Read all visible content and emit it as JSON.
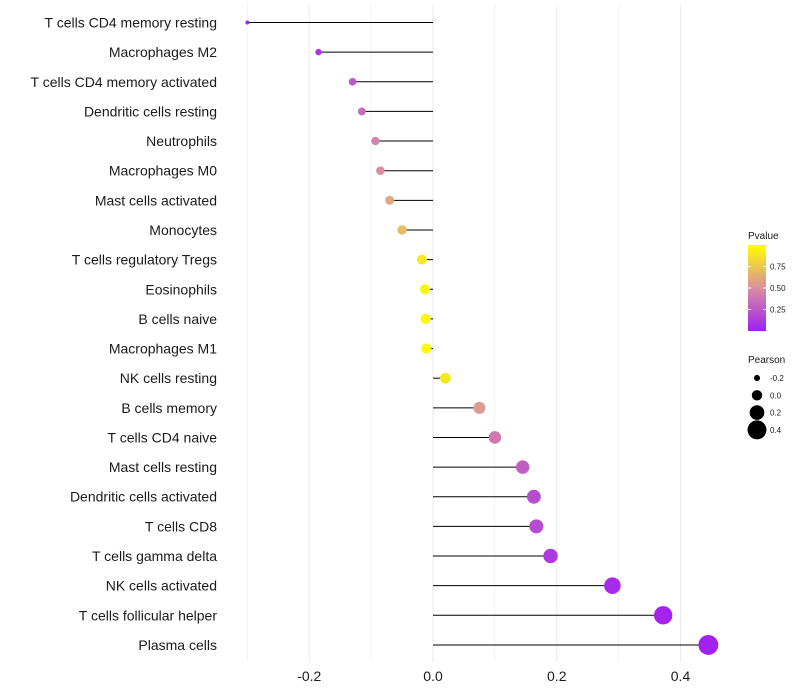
{
  "chart_data": {
    "type": "lollipop",
    "title": "",
    "xlabel": "",
    "ylabel": "",
    "xlim": [
      -0.3,
      0.45
    ],
    "x_ticks": [
      -0.2,
      0.0,
      0.2,
      0.4
    ],
    "x_tick_labels": [
      "-0.2",
      "0.0",
      "0.2",
      "0.4"
    ],
    "grid": true,
    "categories": [
      "T cells CD4 memory resting",
      "Macrophages M2",
      "T cells CD4 memory activated",
      "Dendritic cells resting",
      "Neutrophils",
      "Macrophages M0",
      "Mast cells activated",
      "Monocytes",
      "T cells regulatory  Tregs",
      "Eosinophils",
      "B cells naive",
      "Macrophages M1",
      "NK cells resting",
      "B cells memory",
      "T cells CD4 naive",
      "Mast cells resting",
      "Dendritic cells activated",
      "T cells CD8",
      "T cells gamma delta",
      "NK cells activated",
      "T cells follicular helper",
      "Plasma cells"
    ],
    "pearson": [
      -0.3,
      -0.185,
      -0.13,
      -0.115,
      -0.093,
      -0.085,
      -0.07,
      -0.05,
      -0.018,
      -0.013,
      -0.012,
      -0.011,
      0.02,
      0.075,
      0.1,
      0.145,
      0.163,
      0.167,
      0.19,
      0.29,
      0.372,
      0.445
    ],
    "pvalue": [
      0.02,
      0.1,
      0.25,
      0.35,
      0.45,
      0.5,
      0.6,
      0.7,
      0.9,
      0.95,
      0.97,
      0.98,
      0.9,
      0.55,
      0.4,
      0.28,
      0.2,
      0.2,
      0.12,
      0.05,
      0.02,
      0.01
    ],
    "legend_pvalue": {
      "title": "Pvalue",
      "ticks": [
        0.75,
        0.5,
        0.25
      ],
      "tick_labels": [
        "0.75",
        "0.50",
        "0.25"
      ],
      "range": [
        0.0,
        1.0
      ]
    },
    "legend_pearson": {
      "title": "Pearson",
      "values": [
        -0.2,
        0.0,
        0.2,
        0.4
      ],
      "labels": [
        "-0.2",
        "0.0",
        "0.2",
        "0.4"
      ]
    },
    "colors": {
      "low": "#a020f0",
      "mid": "#d98fa0",
      "high": "#ffff00",
      "stem": "#000000",
      "grid": "#ebebeb"
    }
  }
}
